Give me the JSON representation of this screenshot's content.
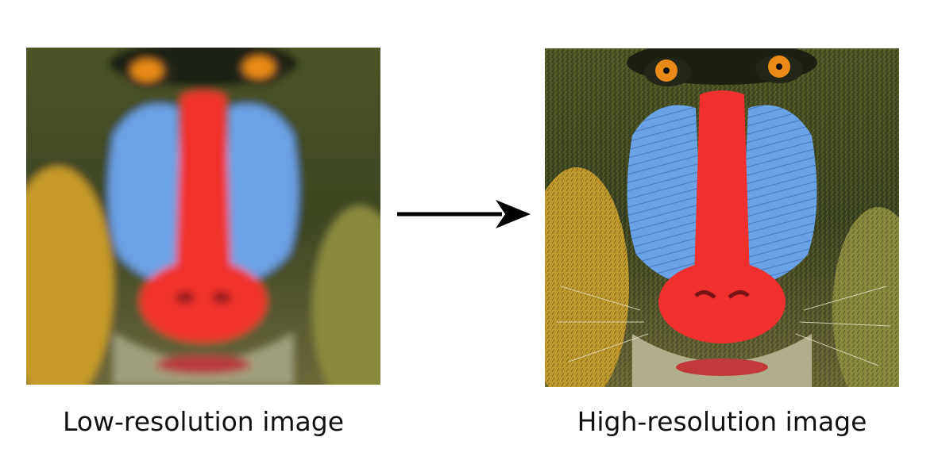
{
  "figure": {
    "left_image": {
      "subject": "mandrill face (blurry)",
      "caption": "Low-resolution image"
    },
    "right_image": {
      "subject": "mandrill face (sharp)",
      "caption": "High-resolution image"
    },
    "arrow": {
      "direction": "right",
      "color": "#000000"
    },
    "palette": {
      "fur_dark": "#2f3a1e",
      "fur_olive": "#6b6e2a",
      "fur_yellow": "#c9a428",
      "cheek_blue": "#6aa2e6",
      "nose_red": "#f0302c",
      "eye_amber": "#e88a18"
    }
  }
}
